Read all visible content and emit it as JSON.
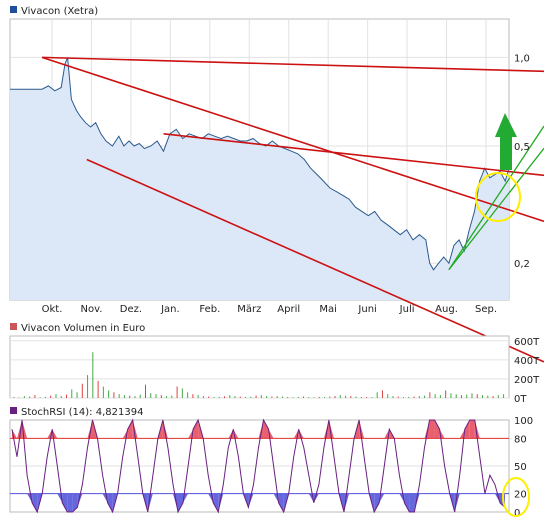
{
  "chart_data": [
    {
      "type": "area",
      "title": "Vivacon (Xetra)",
      "legend_color": "#1f4e9c",
      "x_ticks": [
        "Okt.",
        "Nov.",
        "Dez.",
        "Jan.",
        "Feb.",
        "März",
        "April",
        "Mai",
        "Juni",
        "Juli",
        "Aug.",
        "Sep."
      ],
      "y_ticks": [
        "1,0",
        "0,5",
        "0,2"
      ],
      "y_tick_values": [
        1.0,
        0.5,
        0.2
      ],
      "y_scale": "log",
      "ylim": [
        0.15,
        1.35
      ],
      "grid": true,
      "series": [
        {
          "name": "Vivacon (Xetra)",
          "color": "#2b5a8c",
          "fill": "#dce8f8",
          "x_day": [
            0,
            5,
            10,
            15,
            18,
            20,
            23,
            27,
            30,
            34,
            38,
            42,
            46,
            50,
            55,
            60,
            64,
            68,
            72,
            76,
            80,
            85,
            90,
            95,
            100,
            105,
            110,
            115,
            120,
            125,
            130,
            135,
            140,
            145,
            150,
            155,
            160,
            165,
            170,
            175,
            180,
            185,
            190,
            195,
            200,
            205,
            210,
            215,
            220,
            225,
            230,
            235,
            240,
            245,
            250,
            255,
            260,
            265,
            270,
            275,
            280,
            285,
            290,
            295,
            300,
            303,
            306,
            310,
            314,
            318,
            322,
            326,
            330,
            334,
            338,
            342,
            346,
            350,
            354,
            358,
            362,
            365
          ],
          "values": [
            0.78,
            0.8,
            0.77,
            0.79,
            0.95,
            1.0,
            0.72,
            0.66,
            0.63,
            0.6,
            0.58,
            0.6,
            0.55,
            0.52,
            0.5,
            0.54,
            0.5,
            0.52,
            0.5,
            0.51,
            0.49,
            0.5,
            0.52,
            0.48,
            0.55,
            0.57,
            0.53,
            0.55,
            0.54,
            0.53,
            0.55,
            0.54,
            0.53,
            0.54,
            0.53,
            0.52,
            0.52,
            0.53,
            0.51,
            0.5,
            0.52,
            0.5,
            0.49,
            0.48,
            0.47,
            0.45,
            0.42,
            0.4,
            0.38,
            0.36,
            0.35,
            0.34,
            0.33,
            0.31,
            0.3,
            0.29,
            0.3,
            0.28,
            0.27,
            0.26,
            0.25,
            0.26,
            0.24,
            0.25,
            0.24,
            0.2,
            0.19,
            0.2,
            0.21,
            0.2,
            0.23,
            0.24,
            0.22,
            0.26,
            0.3,
            0.38,
            0.42,
            0.39,
            0.4,
            0.41,
            0.38,
            0.42
          ]
        }
      ],
      "trend_lines": {
        "color": "#cc1111",
        "green_color": "#22aa22",
        "lines": [
          {
            "color": "red",
            "from": [
              0,
              1.0
            ],
            "to": [
              365,
              0.97
            ]
          },
          {
            "color": "red",
            "from": [
              0,
              1.0
            ],
            "to": [
              365,
              0.3
            ]
          },
          {
            "color": "red",
            "from": [
              95,
              0.55
            ],
            "to": [
              365,
              0.43
            ]
          },
          {
            "color": "red",
            "from": [
              35,
              0.45
            ],
            "to": [
              365,
              0.1
            ]
          },
          {
            "color": "green",
            "from": [
              318,
              0.19
            ],
            "to": [
              365,
              0.42
            ]
          },
          {
            "color": "green",
            "from": [
              318,
              0.19
            ],
            "to": [
              365,
              0.5
            ]
          }
        ]
      },
      "annotations": {
        "arrow_color": "#22aa33",
        "circle_color": "#ffee00"
      }
    },
    {
      "type": "bar",
      "title": "Vivacon Volumen in Euro",
      "legend_color": "#cc5555",
      "y_ticks": [
        "600T",
        "400T",
        "200T",
        "0T"
      ],
      "y_tick_values": [
        600,
        400,
        200,
        0
      ],
      "ylim": [
        0,
        650
      ],
      "grid": true,
      "series": [
        {
          "name": "Vivacon Volumen in Euro",
          "up_color": "#44aa44",
          "down_color": "#dd4444",
          "values": [
            10,
            5,
            20,
            15,
            30,
            8,
            12,
            25,
            40,
            20,
            35,
            90,
            60,
            150,
            240,
            480,
            180,
            120,
            80,
            60,
            40,
            30,
            25,
            20,
            35,
            140,
            50,
            40,
            30,
            20,
            25,
            120,
            100,
            60,
            40,
            30,
            20,
            15,
            10,
            12,
            18,
            30,
            20,
            15,
            10,
            12,
            25,
            30,
            20,
            15,
            20,
            15,
            10,
            8,
            12,
            15,
            10,
            8,
            12,
            10,
            15,
            20,
            30,
            25,
            20,
            15,
            12,
            10,
            8,
            60,
            80,
            40,
            20,
            15,
            10,
            12,
            15,
            20,
            25,
            60,
            40,
            30,
            80,
            50,
            40,
            30,
            35,
            50,
            40,
            30,
            25,
            20,
            30,
            40
          ]
        }
      ]
    },
    {
      "type": "line",
      "title": "StochRSI (14): 4,821394",
      "legend_color": "#6a2080",
      "y_ticks": [
        "100",
        "80",
        "50",
        "20",
        "0"
      ],
      "y_tick_values": [
        100,
        80,
        50,
        20,
        0
      ],
      "ylim": [
        0,
        100
      ],
      "upper_line": 80,
      "lower_line": 20,
      "upper_color": "#e03030",
      "lower_color": "#5050e0",
      "upper_fill": "#e86070",
      "lower_fill": "#6666dd",
      "series": [
        {
          "name": "StochRSI (14)",
          "color": "#6a2080",
          "values": [
            90,
            60,
            100,
            40,
            10,
            0,
            20,
            60,
            90,
            50,
            10,
            0,
            0,
            5,
            30,
            70,
            100,
            80,
            40,
            10,
            0,
            20,
            60,
            90,
            100,
            60,
            20,
            0,
            40,
            80,
            100,
            70,
            30,
            0,
            10,
            50,
            90,
            100,
            80,
            40,
            10,
            0,
            30,
            70,
            90,
            60,
            20,
            5,
            30,
            70,
            100,
            90,
            50,
            10,
            0,
            20,
            60,
            90,
            70,
            40,
            10,
            30,
            70,
            100,
            60,
            20,
            0,
            40,
            80,
            100,
            60,
            20,
            0,
            10,
            50,
            90,
            80,
            40,
            10,
            0,
            0,
            30,
            70,
            100,
            100,
            90,
            50,
            20,
            0,
            40,
            90,
            100,
            100,
            60,
            20,
            40,
            30,
            10,
            5
          ]
        }
      ]
    }
  ]
}
